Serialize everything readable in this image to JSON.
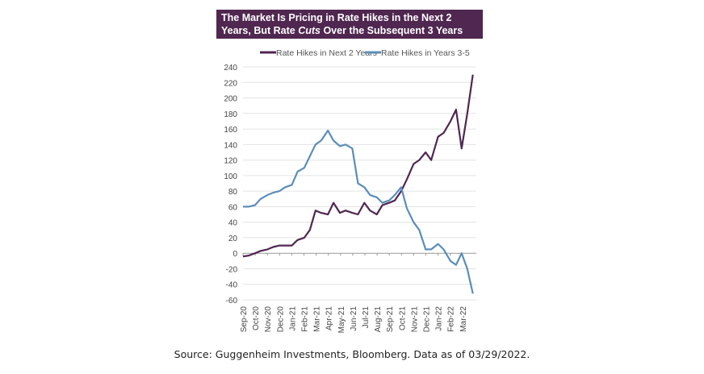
{
  "chart_data": {
    "type": "line",
    "title_part1": "The Market Is Pricing in Rate Hikes in the Next 2 Years, But Rate ",
    "title_italic": "Cuts",
    "title_part2": " Over the Subsequent 3 Years (bp)…",
    "legend_position": "top",
    "grid": true,
    "ylim": [
      -60,
      240
    ],
    "yticks": [
      "-60",
      "-40",
      "-20",
      "0",
      "20",
      "40",
      "60",
      "80",
      "100",
      "120",
      "140",
      "160",
      "180",
      "200",
      "220",
      "240"
    ],
    "xticks": [
      "Sep-20",
      "Oct-20",
      "Nov-20",
      "Dec-20",
      "Jan-21",
      "Feb-21",
      "Mar-21",
      "Apr-21",
      "May-21",
      "Jun-21",
      "Jul-21",
      "Aug-21",
      "Sep-21",
      "Oct-21",
      "Nov-21",
      "Dec-21",
      "Jan-22",
      "Feb-22",
      "Mar-22"
    ],
    "x": [
      "2020-09-01",
      "2020-09-15",
      "2020-10-01",
      "2020-10-15",
      "2020-11-01",
      "2020-11-15",
      "2020-12-01",
      "2020-12-15",
      "2021-01-01",
      "2021-01-15",
      "2021-02-01",
      "2021-02-15",
      "2021-03-01",
      "2021-03-15",
      "2021-04-01",
      "2021-04-15",
      "2021-05-01",
      "2021-05-15",
      "2021-06-01",
      "2021-06-15",
      "2021-07-01",
      "2021-07-15",
      "2021-08-01",
      "2021-08-15",
      "2021-09-01",
      "2021-09-15",
      "2021-10-01",
      "2021-10-15",
      "2021-11-01",
      "2021-11-15",
      "2021-12-01",
      "2021-12-15",
      "2022-01-01",
      "2022-01-15",
      "2022-02-01",
      "2022-02-15",
      "2022-03-01",
      "2022-03-15",
      "2022-03-29"
    ],
    "series": [
      {
        "name": "Rate Hikes in Next 2 Years",
        "color": "#4f2750",
        "values": [
          -4,
          -3,
          0,
          3,
          5,
          8,
          10,
          10,
          10,
          17,
          20,
          30,
          55,
          52,
          50,
          65,
          52,
          55,
          52,
          50,
          65,
          55,
          50,
          62,
          65,
          68,
          80,
          95,
          115,
          120,
          130,
          120,
          150,
          155,
          170,
          185,
          135,
          180,
          230
        ]
      },
      {
        "name": "Rate Hikes in Years 3-5",
        "color": "#5b8db8",
        "values": [
          60,
          60,
          62,
          70,
          75,
          78,
          80,
          85,
          88,
          105,
          110,
          125,
          140,
          145,
          158,
          145,
          138,
          140,
          135,
          90,
          85,
          75,
          72,
          65,
          68,
          75,
          85,
          58,
          40,
          30,
          5,
          5,
          12,
          5,
          -10,
          -15,
          0,
          -20,
          -52
        ]
      }
    ]
  },
  "source": "Source: Guggenheim Investments, Bloomberg. Data as of 03/29/2022."
}
